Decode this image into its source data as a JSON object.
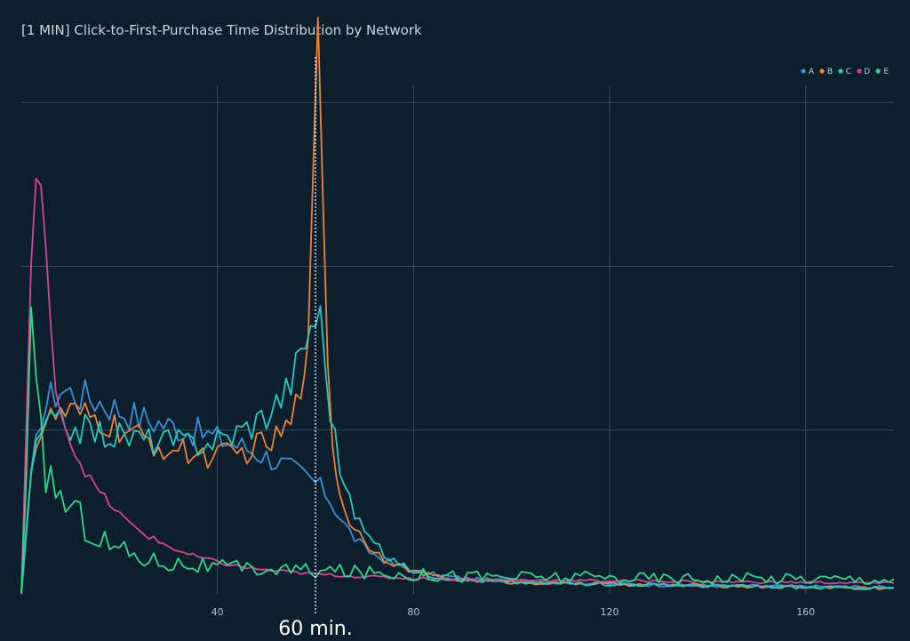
{
  "chart_data": {
    "type": "line",
    "title": "[1 MIN] Click-to-First-Purchase Time Distribution by Network",
    "xlabel": "",
    "ylabel": "",
    "xlim": [
      0,
      178
    ],
    "ylim": [
      0,
      33
    ],
    "x_ticks": [
      40,
      80,
      120,
      160
    ],
    "y_gridlines": [
      10,
      20,
      30
    ],
    "grid": true,
    "legend": {
      "placement": "top-right",
      "orientation": "horizontal"
    },
    "annotation": {
      "x": 60,
      "label": "60 min.",
      "style": "dotted-vertical-line"
    },
    "series": [
      {
        "name": "A",
        "color": "#3b8fd6",
        "points": [
          [
            0,
            0
          ],
          [
            2,
            7
          ],
          [
            4,
            11
          ],
          [
            6,
            12
          ],
          [
            8,
            12.5
          ],
          [
            10,
            12.3
          ],
          [
            14,
            12
          ],
          [
            18,
            11.5
          ],
          [
            22,
            11
          ],
          [
            26,
            10.6
          ],
          [
            30,
            10.3
          ],
          [
            34,
            10
          ],
          [
            38,
            9.7
          ],
          [
            42,
            9.3
          ],
          [
            46,
            8.9
          ],
          [
            50,
            8.4
          ],
          [
            54,
            7.8
          ],
          [
            58,
            7.2
          ],
          [
            60,
            6.8
          ],
          [
            62,
            6.2
          ],
          [
            64,
            5.2
          ],
          [
            66,
            4.2
          ],
          [
            68,
            3.4
          ],
          [
            70,
            2.8
          ],
          [
            72,
            2.4
          ],
          [
            76,
            1.8
          ],
          [
            80,
            1.4
          ],
          [
            86,
            1.1
          ],
          [
            92,
            0.9
          ],
          [
            100,
            0.8
          ],
          [
            120,
            0.6
          ],
          [
            140,
            0.5
          ],
          [
            160,
            0.45
          ],
          [
            178,
            0.4
          ]
        ]
      },
      {
        "name": "B",
        "color": "#e8833a",
        "points": [
          [
            0,
            0
          ],
          [
            2,
            8
          ],
          [
            4,
            10
          ],
          [
            6,
            10.6
          ],
          [
            8,
            11
          ],
          [
            12,
            10.8
          ],
          [
            16,
            10.5
          ],
          [
            20,
            10
          ],
          [
            24,
            9.5
          ],
          [
            28,
            9
          ],
          [
            32,
            8.7
          ],
          [
            36,
            8.5
          ],
          [
            40,
            8.4
          ],
          [
            44,
            8.5
          ],
          [
            48,
            9
          ],
          [
            52,
            9.4
          ],
          [
            55,
            10.3
          ],
          [
            57,
            12.5
          ],
          [
            58.5,
            17
          ],
          [
            59.5,
            24
          ],
          [
            60.5,
            33
          ],
          [
            61.5,
            25
          ],
          [
            62.5,
            15
          ],
          [
            63.5,
            9
          ],
          [
            65,
            6
          ],
          [
            67,
            4.5
          ],
          [
            70,
            3.2
          ],
          [
            74,
            2.2
          ],
          [
            78,
            1.6
          ],
          [
            82,
            1.2
          ],
          [
            88,
            0.9
          ],
          [
            100,
            0.7
          ],
          [
            120,
            0.6
          ],
          [
            140,
            0.5
          ],
          [
            160,
            0.4
          ],
          [
            178,
            0.35
          ]
        ]
      },
      {
        "name": "C",
        "color": "#22c9c0",
        "points": [
          [
            0,
            0
          ],
          [
            2,
            7.5
          ],
          [
            4,
            9.8
          ],
          [
            6,
            10.5
          ],
          [
            10,
            10.2
          ],
          [
            14,
            10
          ],
          [
            18,
            9.7
          ],
          [
            22,
            9.6
          ],
          [
            26,
            9.4
          ],
          [
            30,
            9.3
          ],
          [
            34,
            9.2
          ],
          [
            38,
            9.3
          ],
          [
            42,
            9.6
          ],
          [
            46,
            10.2
          ],
          [
            50,
            11
          ],
          [
            54,
            12.4
          ],
          [
            57,
            14.5
          ],
          [
            59,
            16.5
          ],
          [
            60,
            17
          ],
          [
            61,
            16.8
          ],
          [
            62,
            14
          ],
          [
            63,
            11.5
          ],
          [
            64,
            9.5
          ],
          [
            65,
            7.8
          ],
          [
            67,
            5.6
          ],
          [
            70,
            3.8
          ],
          [
            74,
            2.4
          ],
          [
            78,
            1.7
          ],
          [
            82,
            1.2
          ],
          [
            88,
            0.9
          ],
          [
            100,
            0.7
          ],
          [
            120,
            0.6
          ],
          [
            140,
            0.5
          ],
          [
            160,
            0.4
          ],
          [
            178,
            0.35
          ]
        ]
      },
      {
        "name": "D",
        "color": "#d6449a",
        "points": [
          [
            0,
            0
          ],
          [
            1.2,
            12
          ],
          [
            2,
            20
          ],
          [
            3,
            25.5
          ],
          [
            4,
            24.5
          ],
          [
            5,
            20.5
          ],
          [
            6,
            16
          ],
          [
            7,
            13
          ],
          [
            8,
            11.2
          ],
          [
            10,
            9.3
          ],
          [
            12,
            8
          ],
          [
            14,
            7
          ],
          [
            16,
            6.2
          ],
          [
            18,
            5.5
          ],
          [
            22,
            4.3
          ],
          [
            26,
            3.5
          ],
          [
            30,
            2.9
          ],
          [
            34,
            2.4
          ],
          [
            38,
            2.1
          ],
          [
            42,
            1.8
          ],
          [
            46,
            1.6
          ],
          [
            50,
            1.45
          ],
          [
            56,
            1.3
          ],
          [
            60,
            1.2
          ],
          [
            70,
            1.05
          ],
          [
            80,
            0.95
          ],
          [
            100,
            0.85
          ],
          [
            120,
            0.8
          ],
          [
            140,
            0.75
          ],
          [
            160,
            0.7
          ],
          [
            178,
            0.65
          ]
        ]
      },
      {
        "name": "E",
        "color": "#2ed88a",
        "points": [
          [
            0,
            0
          ],
          [
            1,
            7
          ],
          [
            2,
            15.5
          ],
          [
            3,
            11
          ],
          [
            4,
            9
          ],
          [
            5,
            7.8
          ],
          [
            6,
            7
          ],
          [
            8,
            6
          ],
          [
            10,
            5.3
          ],
          [
            12,
            4.6
          ],
          [
            14,
            4
          ],
          [
            16,
            3.4
          ],
          [
            18,
            3
          ],
          [
            22,
            2.5
          ],
          [
            26,
            2.1
          ],
          [
            30,
            1.9
          ],
          [
            34,
            1.8
          ],
          [
            40,
            1.6
          ],
          [
            48,
            1.5
          ],
          [
            56,
            1.45
          ],
          [
            60,
            1.4
          ],
          [
            64,
            1.4
          ],
          [
            70,
            1.3
          ],
          [
            80,
            1.2
          ],
          [
            90,
            1.1
          ],
          [
            100,
            1.05
          ],
          [
            120,
            1
          ],
          [
            140,
            0.95
          ],
          [
            160,
            0.95
          ],
          [
            178,
            0.9
          ]
        ]
      }
    ]
  }
}
